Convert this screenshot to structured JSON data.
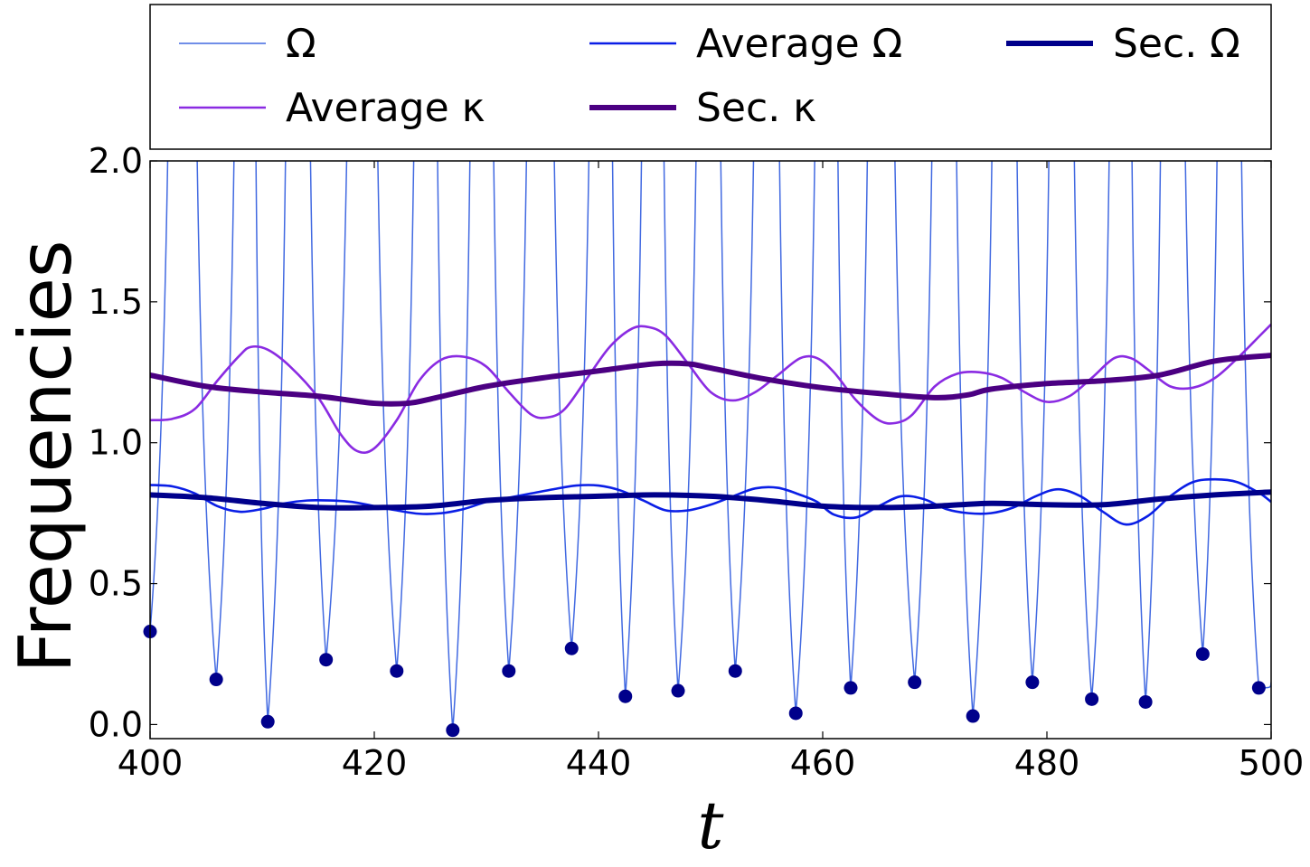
{
  "chart_data": {
    "type": "line",
    "title": "",
    "xlabel": "t",
    "ylabel": "Frequencies",
    "xlim": [
      400,
      500
    ],
    "ylim": [
      -0.05,
      2.0
    ],
    "grid": false,
    "legend_position": "top, outside plot area",
    "x_ticks": [
      {
        "value": 400,
        "label": "400"
      },
      {
        "value": 420,
        "label": "420"
      },
      {
        "value": 440,
        "label": "440"
      },
      {
        "value": 460,
        "label": "460"
      },
      {
        "value": 480,
        "label": "480"
      },
      {
        "value": 500,
        "label": "500"
      }
    ],
    "y_ticks": [
      {
        "value": 0.0,
        "label": "0.0"
      },
      {
        "value": 0.5,
        "label": "0.5"
      },
      {
        "value": 1.0,
        "label": "1.0"
      },
      {
        "value": 1.5,
        "label": "1.5"
      },
      {
        "value": 2.0,
        "label": "2.0"
      }
    ],
    "legend": [
      {
        "key": "omega",
        "label": "Ω"
      },
      {
        "key": "avg_omega",
        "label": "Average Ω"
      },
      {
        "key": "sec_omega",
        "label": "Sec. Ω"
      },
      {
        "key": "avg_kappa",
        "label": "Average κ"
      },
      {
        "key": "sec_kappa",
        "label": "Sec. κ"
      }
    ],
    "series": [
      {
        "key": "omega",
        "name": "Ω",
        "color": "#4169e1",
        "stroke_width": 1.5,
        "minima": [
          [
            400.0,
            0.33
          ],
          [
            405.9,
            0.16
          ],
          [
            410.5,
            0.01
          ],
          [
            415.7,
            0.23
          ],
          [
            422.0,
            0.19
          ],
          [
            427.0,
            -0.02
          ],
          [
            432.0,
            0.19
          ],
          [
            437.6,
            0.27
          ],
          [
            442.4,
            0.1
          ],
          [
            447.1,
            0.12
          ],
          [
            452.2,
            0.19
          ],
          [
            457.6,
            0.04
          ],
          [
            462.5,
            0.13
          ],
          [
            468.2,
            0.15
          ],
          [
            473.4,
            0.03
          ],
          [
            478.7,
            0.15
          ],
          [
            484.0,
            0.09
          ],
          [
            488.8,
            0.08
          ],
          [
            493.9,
            0.25
          ],
          [
            498.9,
            0.13
          ],
          [
            500.0,
            0.15
          ]
        ],
        "spikes": [
          402.9,
          408.7,
          413.2,
          419.0,
          424.7,
          429.6,
          434.8,
          440.4,
          444.9,
          449.9,
          455.1,
          460.5,
          465.1,
          470.9,
          476.3,
          481.3,
          486.7,
          491.1,
          496.2
        ]
      },
      {
        "key": "avg_omega",
        "name": "Average Ω",
        "color": "#0a1ee6",
        "stroke_width": 2.6,
        "points": [
          [
            400,
            0.85
          ],
          [
            402,
            0.845
          ],
          [
            404,
            0.82
          ],
          [
            406,
            0.775
          ],
          [
            408,
            0.755
          ],
          [
            410,
            0.765
          ],
          [
            412,
            0.785
          ],
          [
            414,
            0.795
          ],
          [
            416,
            0.795
          ],
          [
            418,
            0.79
          ],
          [
            420,
            0.775
          ],
          [
            422,
            0.76
          ],
          [
            424,
            0.748
          ],
          [
            426,
            0.75
          ],
          [
            428,
            0.765
          ],
          [
            430,
            0.79
          ],
          [
            432,
            0.805
          ],
          [
            434,
            0.82
          ],
          [
            436,
            0.835
          ],
          [
            438,
            0.848
          ],
          [
            440,
            0.848
          ],
          [
            442,
            0.83
          ],
          [
            444,
            0.795
          ],
          [
            446,
            0.76
          ],
          [
            448,
            0.76
          ],
          [
            450,
            0.78
          ],
          [
            452,
            0.81
          ],
          [
            454,
            0.838
          ],
          [
            456,
            0.84
          ],
          [
            458,
            0.815
          ],
          [
            459.5,
            0.79
          ],
          [
            461,
            0.745
          ],
          [
            463,
            0.735
          ],
          [
            465,
            0.775
          ],
          [
            467,
            0.81
          ],
          [
            469,
            0.8
          ],
          [
            471,
            0.765
          ],
          [
            473,
            0.75
          ],
          [
            475,
            0.75
          ],
          [
            477,
            0.77
          ],
          [
            479,
            0.81
          ],
          [
            481,
            0.835
          ],
          [
            483,
            0.81
          ],
          [
            485,
            0.755
          ],
          [
            487,
            0.71
          ],
          [
            489,
            0.74
          ],
          [
            491,
            0.81
          ],
          [
            493,
            0.86
          ],
          [
            495,
            0.87
          ],
          [
            497,
            0.86
          ],
          [
            499,
            0.82
          ],
          [
            500,
            0.79
          ]
        ]
      },
      {
        "key": "sec_omega",
        "name": "Sec. Ω",
        "color": "#00008b",
        "stroke_width": 6,
        "points": [
          [
            400,
            0.815
          ],
          [
            405,
            0.805
          ],
          [
            410,
            0.785
          ],
          [
            415,
            0.77
          ],
          [
            420,
            0.77
          ],
          [
            425,
            0.775
          ],
          [
            430,
            0.795
          ],
          [
            435,
            0.805
          ],
          [
            440,
            0.81
          ],
          [
            445,
            0.815
          ],
          [
            450,
            0.81
          ],
          [
            455,
            0.795
          ],
          [
            460,
            0.775
          ],
          [
            465,
            0.77
          ],
          [
            470,
            0.775
          ],
          [
            475,
            0.785
          ],
          [
            480,
            0.78
          ],
          [
            485,
            0.78
          ],
          [
            490,
            0.8
          ],
          [
            495,
            0.815
          ],
          [
            500,
            0.825
          ]
        ]
      },
      {
        "key": "avg_kappa",
        "name": "Average κ",
        "color": "#8a2be2",
        "stroke_width": 2.6,
        "points": [
          [
            400,
            1.08
          ],
          [
            402,
            1.085
          ],
          [
            404,
            1.12
          ],
          [
            406,
            1.22
          ],
          [
            408,
            1.31
          ],
          [
            409,
            1.34
          ],
          [
            410.5,
            1.33
          ],
          [
            412.5,
            1.27
          ],
          [
            415,
            1.16
          ],
          [
            417,
            1.03
          ],
          [
            418.5,
            0.97
          ],
          [
            420,
            0.98
          ],
          [
            422,
            1.08
          ],
          [
            424,
            1.22
          ],
          [
            426,
            1.295
          ],
          [
            428,
            1.305
          ],
          [
            430,
            1.27
          ],
          [
            432,
            1.18
          ],
          [
            434,
            1.1
          ],
          [
            435.5,
            1.09
          ],
          [
            437,
            1.12
          ],
          [
            439,
            1.23
          ],
          [
            441,
            1.34
          ],
          [
            443,
            1.405
          ],
          [
            444.5,
            1.41
          ],
          [
            446,
            1.38
          ],
          [
            448,
            1.28
          ],
          [
            450,
            1.18
          ],
          [
            452,
            1.15
          ],
          [
            454,
            1.18
          ],
          [
            456,
            1.24
          ],
          [
            458,
            1.3
          ],
          [
            459.5,
            1.3
          ],
          [
            461,
            1.25
          ],
          [
            463,
            1.15
          ],
          [
            465,
            1.08
          ],
          [
            466.5,
            1.07
          ],
          [
            468,
            1.1
          ],
          [
            470,
            1.2
          ],
          [
            472,
            1.245
          ],
          [
            474,
            1.25
          ],
          [
            476,
            1.23
          ],
          [
            478,
            1.18
          ],
          [
            480,
            1.145
          ],
          [
            482,
            1.165
          ],
          [
            484,
            1.23
          ],
          [
            486,
            1.3
          ],
          [
            487.5,
            1.3
          ],
          [
            489,
            1.26
          ],
          [
            491,
            1.2
          ],
          [
            493,
            1.195
          ],
          [
            495,
            1.23
          ],
          [
            497,
            1.3
          ],
          [
            499,
            1.38
          ],
          [
            500,
            1.42
          ]
        ]
      },
      {
        "key": "sec_kappa",
        "name": "Sec. κ",
        "color": "#4b0082",
        "stroke_width": 6,
        "points": [
          [
            400,
            1.24
          ],
          [
            405,
            1.2
          ],
          [
            410,
            1.18
          ],
          [
            415,
            1.165
          ],
          [
            420,
            1.14
          ],
          [
            423,
            1.14
          ],
          [
            425,
            1.155
          ],
          [
            430,
            1.2
          ],
          [
            435,
            1.23
          ],
          [
            440,
            1.255
          ],
          [
            445,
            1.28
          ],
          [
            448,
            1.28
          ],
          [
            450,
            1.265
          ],
          [
            455,
            1.225
          ],
          [
            460,
            1.195
          ],
          [
            465,
            1.175
          ],
          [
            470,
            1.16
          ],
          [
            473,
            1.17
          ],
          [
            475,
            1.19
          ],
          [
            480,
            1.21
          ],
          [
            485,
            1.22
          ],
          [
            490,
            1.24
          ],
          [
            495,
            1.29
          ],
          [
            500,
            1.31
          ]
        ]
      }
    ]
  }
}
